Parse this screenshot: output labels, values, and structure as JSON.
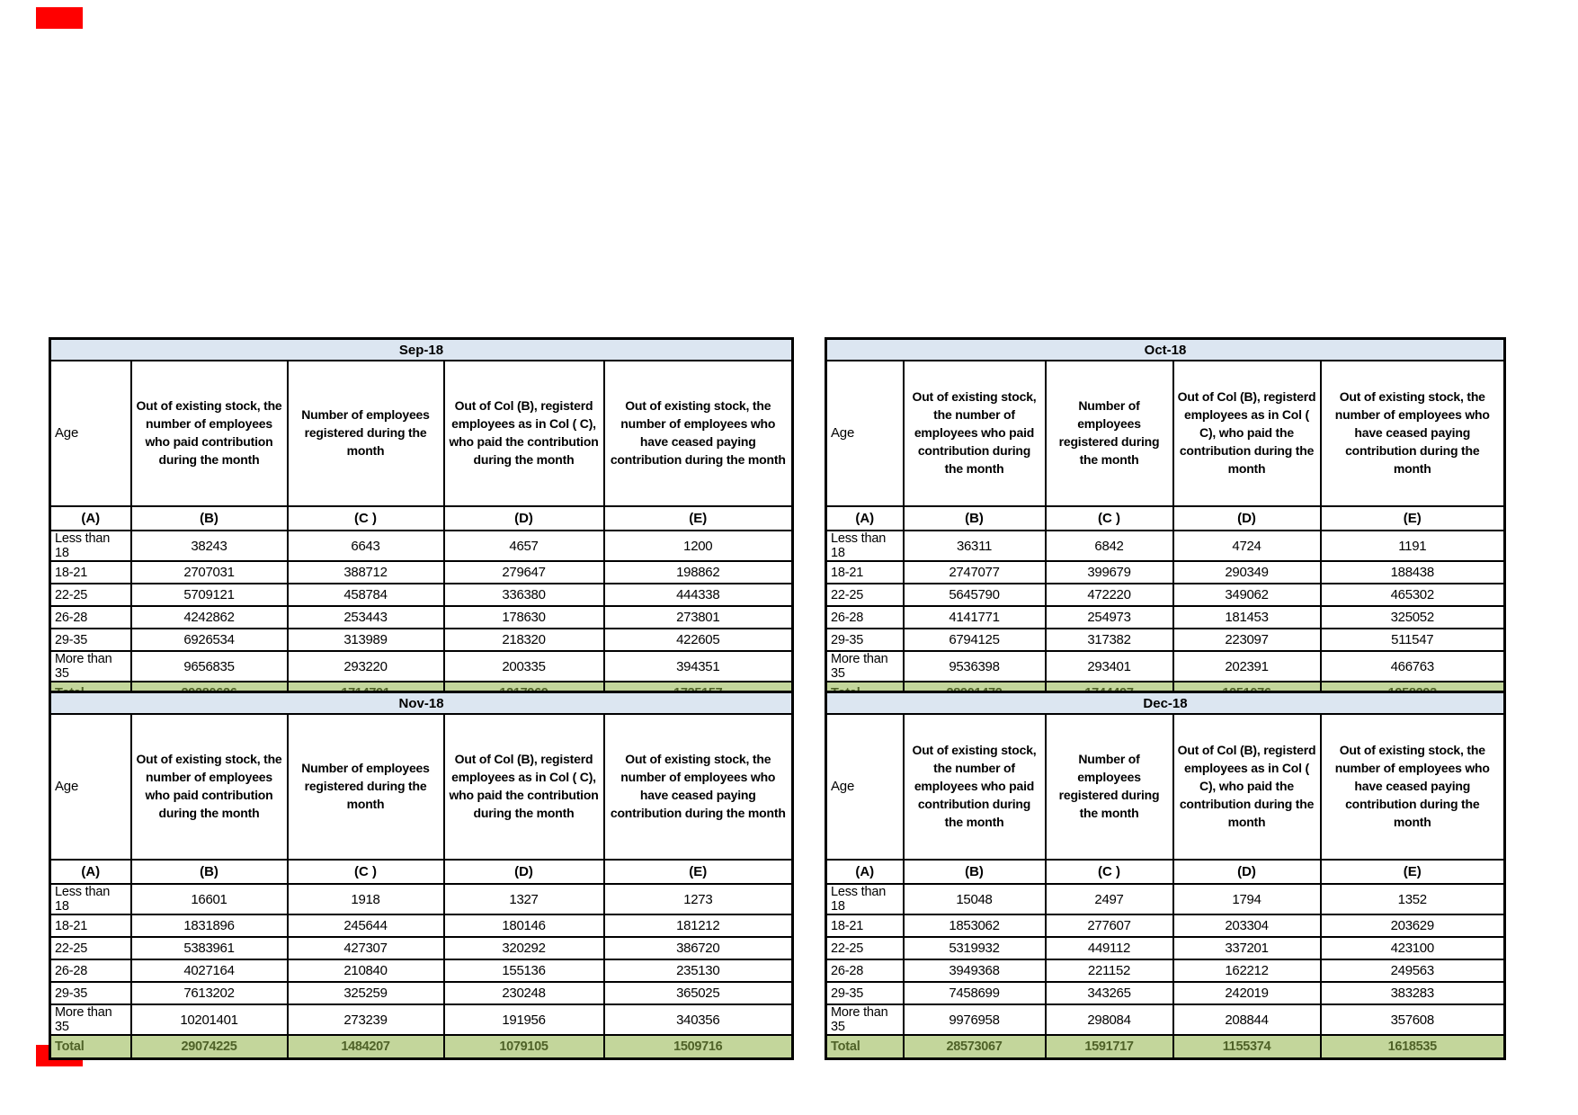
{
  "colors": {
    "title_bg": "#DCE6F1",
    "total_bg": "#C3D69B",
    "total_text": "#4F6228",
    "marker": "#FF0000",
    "border": "#000000"
  },
  "tables": [
    {
      "title": "Sep-18",
      "columns": [
        "Age",
        "Out of existing stock, the number of employees who paid contribution during the month",
        "Number of employees registered during the month",
        "Out of Col (B), registerd employees as in Col ( C), who paid the contribution during the month",
        "Out of existing stock, the number of employees  who have ceased paying contribution during the month"
      ],
      "column_letters": [
        "(A)",
        "(B)",
        "(C )",
        "(D)",
        "(E)"
      ],
      "rows": [
        [
          "Less than 18",
          "38243",
          "6643",
          "4657",
          "1200"
        ],
        [
          "18-21",
          "2707031",
          "388712",
          "279647",
          "198862"
        ],
        [
          "22-25",
          "5709121",
          "458784",
          "336380",
          "444338"
        ],
        [
          "26-28",
          "4242862",
          "253443",
          "178630",
          "273801"
        ],
        [
          "29-35",
          "6926534",
          "313989",
          "218320",
          "422605"
        ],
        [
          "More than 35",
          "9656835",
          "293220",
          "200335",
          "394351"
        ]
      ],
      "total": [
        "Total",
        "29280626",
        "1714791",
        "1217969",
        "1735157"
      ]
    },
    {
      "title": "Oct-18",
      "columns": [
        "Age",
        "Out of existing stock, the number of employees who paid contribution during the month",
        "Number of employees registered during the month",
        "Out of Col (B), registerd employees as in Col ( C), who paid the contribution during the month",
        "Out of existing stock, the number of employees  who have ceased paying contribution during the month"
      ],
      "column_letters": [
        "(A)",
        "(B)",
        "(C )",
        "(D)",
        "(E)"
      ],
      "rows": [
        [
          "Less than 18",
          "36311",
          "6842",
          "4724",
          "1191"
        ],
        [
          "18-21",
          "2747077",
          "399679",
          "290349",
          "188438"
        ],
        [
          "22-25",
          "5645790",
          "472220",
          "349062",
          "465302"
        ],
        [
          "26-28",
          "4141771",
          "254973",
          "181453",
          "325052"
        ],
        [
          "29-35",
          "6794125",
          "317382",
          "223097",
          "511547"
        ],
        [
          "More than 35",
          "9536398",
          "293401",
          "202391",
          "466763"
        ]
      ],
      "total": [
        "Total",
        "28901472",
        "1744497",
        "1251076",
        "1958293"
      ]
    },
    {
      "title": "Nov-18",
      "columns": [
        "Age",
        "Out of existing stock, the number of employees who paid contribution during the month",
        "Number of employees registered during the month",
        "Out of Col (B), registerd employees as in Col ( C), who paid the contribution during the month",
        "Out of existing stock, the number of employees  who have ceased paying contribution during the month"
      ],
      "column_letters": [
        "(A)",
        "(B)",
        "(C )",
        "(D)",
        "(E)"
      ],
      "rows": [
        [
          "Less than 18",
          "16601",
          "1918",
          "1327",
          "1273"
        ],
        [
          "18-21",
          "1831896",
          "245644",
          "180146",
          "181212"
        ],
        [
          "22-25",
          "5383961",
          "427307",
          "320292",
          "386720"
        ],
        [
          "26-28",
          "4027164",
          "210840",
          "155136",
          "235130"
        ],
        [
          "29-35",
          "7613202",
          "325259",
          "230248",
          "365025"
        ],
        [
          "More than 35",
          "10201401",
          "273239",
          "191956",
          "340356"
        ]
      ],
      "total": [
        "Total",
        "29074225",
        "1484207",
        "1079105",
        "1509716"
      ]
    },
    {
      "title": "Dec-18",
      "columns": [
        "Age",
        "Out of existing stock, the number of employees who paid contribution during the month",
        "Number of employees registered during the month",
        "Out of Col (B), registerd employees as in Col ( C), who paid the contribution during the month",
        "Out of existing stock, the number of employees  who have ceased paying contribution during the month"
      ],
      "column_letters": [
        "(A)",
        "(B)",
        "(C )",
        "(D)",
        "(E)"
      ],
      "rows": [
        [
          "Less than 18",
          "15048",
          "2497",
          "1794",
          "1352"
        ],
        [
          "18-21",
          "1853062",
          "277607",
          "203304",
          "203629"
        ],
        [
          "22-25",
          "5319932",
          "449112",
          "337201",
          "423100"
        ],
        [
          "26-28",
          "3949368",
          "221152",
          "162212",
          "249563"
        ],
        [
          "29-35",
          "7458699",
          "343265",
          "242019",
          "383283"
        ],
        [
          "More than 35",
          "9976958",
          "298084",
          "208844",
          "357608"
        ]
      ],
      "total": [
        "Total",
        "28573067",
        "1591717",
        "1155374",
        "1618535"
      ]
    }
  ]
}
